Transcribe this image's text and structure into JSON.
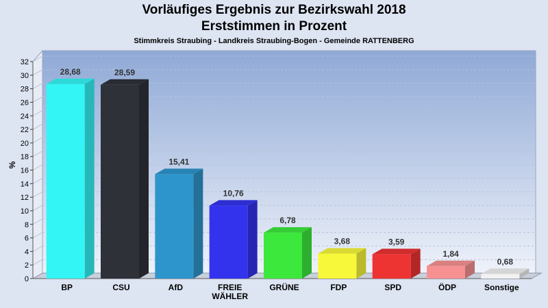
{
  "chart_data": {
    "type": "bar",
    "title": "Vorläufiges Ergebnis zur Bezirkswahl 2018",
    "subtitle": "Erststimmen in Prozent",
    "subsubtitle": "Stimmkreis Straubing - Landkreis Straubing-Bogen - Gemeinde RATTENBERG",
    "ylabel": "%",
    "ylim": [
      0,
      32
    ],
    "ytick_step": 2,
    "grid": true,
    "categories": [
      "BP",
      "CSU",
      "AfD",
      "FREIE WÄHLER",
      "GRÜNE",
      "FDP",
      "SPD",
      "ÖDP",
      "Sonstige"
    ],
    "category_lines": [
      [
        "BP"
      ],
      [
        "CSU"
      ],
      [
        "AfD"
      ],
      [
        "FREIE",
        "WÄHLER"
      ],
      [
        "GRÜNE"
      ],
      [
        "FDP"
      ],
      [
        "SPD"
      ],
      [
        "ÖDP"
      ],
      [
        "Sonstige"
      ]
    ],
    "values": [
      28.68,
      28.59,
      15.41,
      10.76,
      6.78,
      3.68,
      3.59,
      1.84,
      0.68
    ],
    "value_labels": [
      "28,68",
      "28,59",
      "15,41",
      "10,76",
      "6,78",
      "3,68",
      "3,59",
      "1,84",
      "0,68"
    ],
    "colors": [
      "#33f5f5",
      "#2e3138",
      "#2e95cc",
      "#3333ee",
      "#3de83d",
      "#f8f83a",
      "#ee3333",
      "#f79191",
      "#f2f2f2"
    ]
  }
}
